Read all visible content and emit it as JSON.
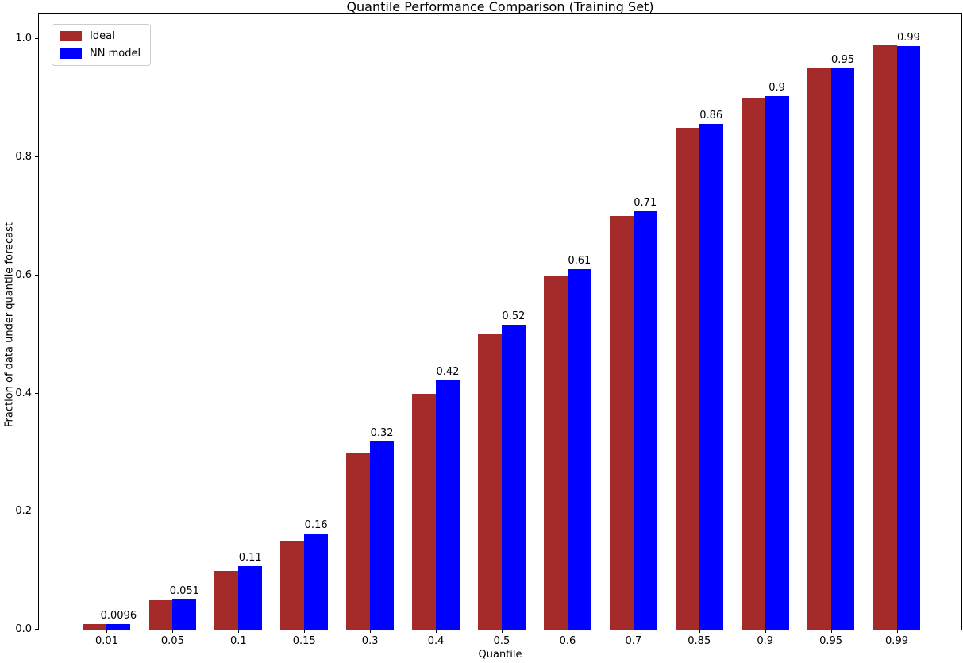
{
  "chart_data": {
    "type": "bar",
    "title": "Quantile Performance Comparison (Training Set)",
    "xlabel": "Quantile",
    "ylabel": "Fraction of data under quantile forecast",
    "categories": [
      "0.01",
      "0.05",
      "0.1",
      "0.15",
      "0.3",
      "0.4",
      "0.5",
      "0.6",
      "0.7",
      "0.85",
      "0.9",
      "0.95",
      "0.99"
    ],
    "series": [
      {
        "name": "Ideal",
        "color": "#A52A2A",
        "values": [
          0.01,
          0.05,
          0.1,
          0.15,
          0.3,
          0.4,
          0.5,
          0.6,
          0.7,
          0.85,
          0.9,
          0.95,
          0.99
        ]
      },
      {
        "name": "NN model",
        "color": "#0000FF",
        "values": [
          0.0096,
          0.051,
          0.107,
          0.163,
          0.318,
          0.422,
          0.516,
          0.611,
          0.709,
          0.857,
          0.903,
          0.951,
          0.988
        ],
        "bar_labels": [
          "0.0096",
          "0.051",
          "0.11",
          "0.16",
          "0.32",
          "0.42",
          "0.52",
          "0.61",
          "0.71",
          "0.86",
          "0.9",
          "0.95",
          "0.99"
        ]
      }
    ],
    "ytick_values": [
      0.0,
      0.2,
      0.4,
      0.6,
      0.8,
      1.0
    ],
    "ytick_labels": [
      "0.0",
      "0.2",
      "0.4",
      "0.6",
      "0.8",
      "1.0"
    ],
    "ylim": [
      0,
      1.042
    ],
    "legend_position": "upper left",
    "grid": false,
    "background_color": "#ffffff",
    "axis_color": "#000000",
    "text_color": "#000000"
  }
}
